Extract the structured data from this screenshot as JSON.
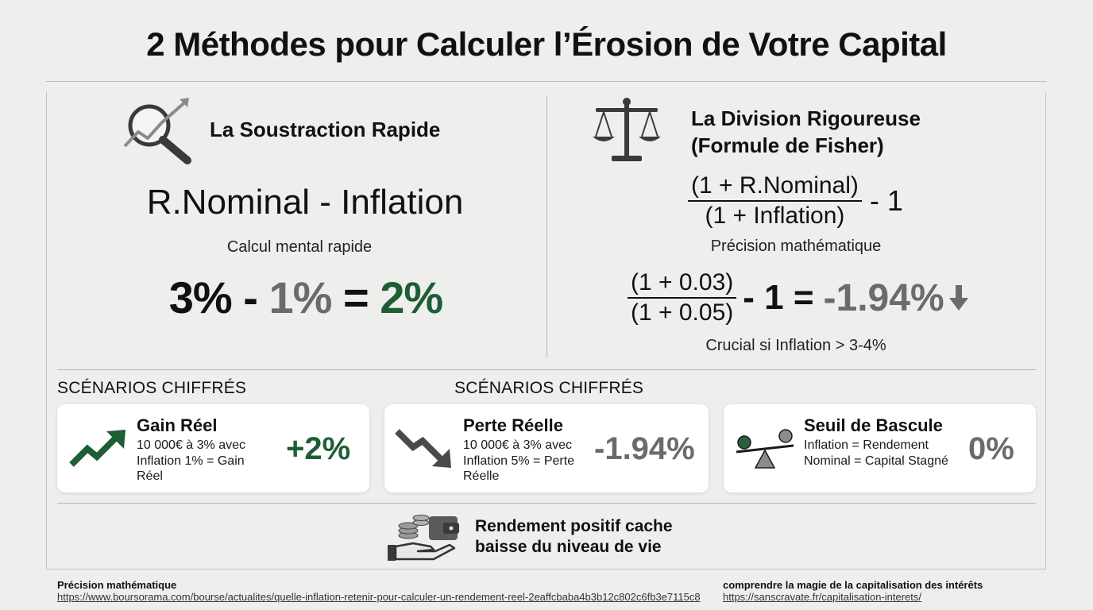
{
  "title": "2 Méthodes pour Calculer l’Érosion de Votre Capital",
  "left_panel": {
    "title": "La Soustraction Rapide",
    "icon": "magnifier-trend-icon",
    "formula": "R.Nominal - Inflation",
    "caption": "Calcul mental rapide",
    "example": {
      "a": "3%",
      "minus": "-",
      "b": "1%",
      "equals": "=",
      "result": "2%"
    }
  },
  "right_panel": {
    "title_line1": "La Division Rigoureuse",
    "title_line2": "(Formule de Fisher)",
    "icon": "scales-icon",
    "formula": {
      "numerator": "(1 + R.Nominal)",
      "denominator": "(1 + Inflation)",
      "suffix": "- 1"
    },
    "caption": "Précision mathématique",
    "example": {
      "numerator": "(1 + 0.03)",
      "denominator": "(1 + 0.05)",
      "suffix": "- 1 =",
      "result": "-1.94%",
      "arrow": "down-arrow-icon"
    },
    "note": "Crucial si Inflation > 3-4%"
  },
  "scenarios": {
    "heading_left": "SCÉNARIOS CHIFFRÉS",
    "heading_center": "SCÉNARIOS CHIFFRÉS",
    "cards": [
      {
        "title": "Gain Réel",
        "desc_lines": [
          "10 000€ à 3% avec",
          "Inflation 1% = Gain",
          "Réel"
        ],
        "value": "+2%",
        "icon": "trend-up-arrow-icon",
        "color": "#1e5e35"
      },
      {
        "title": "Perte Réelle",
        "desc_lines": [
          "10 000€ à 3% avec",
          "Inflation 5% = Perte",
          "Réelle"
        ],
        "value": "-1.94%",
        "icon": "trend-down-arrow-icon",
        "color": "#6b6b6b"
      },
      {
        "title": "Seuil de Bascule",
        "desc_lines": [
          "Inflation = Rendement",
          "Nominal = Capital Stagné"
        ],
        "value": "0%",
        "icon": "seesaw-balance-icon",
        "color": "#6b6b6b"
      }
    ]
  },
  "conclusion": {
    "line1": "Rendement positif cache",
    "line2": "baisse du niveau de vie",
    "icon": "hand-coins-wallet-icon"
  },
  "sources": [
    {
      "label": "Précision mathématique",
      "url": "https://www.boursorama.com/bourse/actualites/quelle-inflation-retenir-pour-calculer-un-rendement-reel-2eaffcbaba4b3b12c802c6fb3e7115c8"
    },
    {
      "label": "comprendre la magie de la capitalisation des intérêts",
      "url": "https://sanscravate.fr/capitalisation-interets/"
    }
  ]
}
